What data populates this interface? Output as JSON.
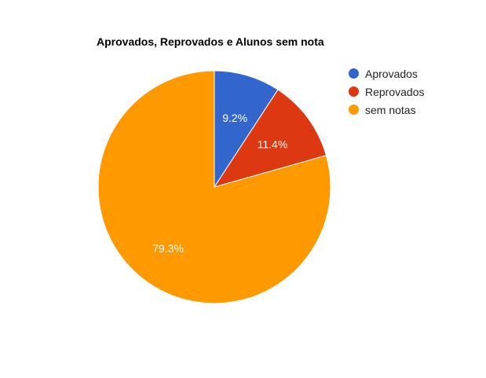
{
  "chart_data": {
    "type": "pie",
    "title": "Aprovados, Reprovados e Alunos sem nota",
    "categories": [
      "Aprovados",
      "Reprovados",
      "sem notas"
    ],
    "values": [
      9.2,
      11.4,
      79.3
    ],
    "data_labels": [
      "9.2%",
      "11.4%",
      "79.3%"
    ],
    "colors": [
      "#3366cc",
      "#dc3912",
      "#ff9900"
    ],
    "legend_position": "right",
    "start_angle": "top, clockwise"
  }
}
